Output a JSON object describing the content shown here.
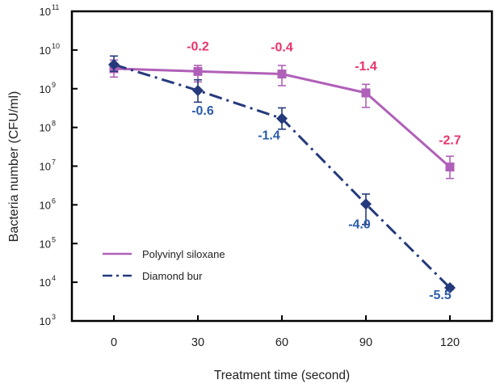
{
  "chart_data": {
    "type": "line",
    "xlabel": "Treatment time (second)",
    "ylabel": "Bacteria number (CFU/ml)",
    "x": [
      0,
      30,
      60,
      90,
      120
    ],
    "xlim": [
      -15,
      135
    ],
    "ylim": [
      1000,
      100000000000
    ],
    "yscale": "log",
    "y_tick_exponents": [
      3,
      4,
      5,
      6,
      7,
      8,
      9,
      10,
      11
    ],
    "y_tick_base": "10",
    "grid": false,
    "legend": {
      "position": "lower-left"
    },
    "series": [
      {
        "name": "Polyvinyl siloxane",
        "color": "#b060b8",
        "label_color": "#e8336a",
        "line_style": "solid",
        "marker": "square",
        "values": [
          3300000000,
          2800000000,
          2400000000,
          780000000,
          9500000
        ],
        "errors": [
          [
            2000000000,
            5500000000
          ],
          [
            1500000000,
            4000000000
          ],
          [
            1200000000,
            4000000000
          ],
          [
            330000000,
            1300000000
          ],
          [
            4800000,
            18000000
          ]
        ],
        "log_reduction_labels": [
          "",
          "-0.2",
          "-0.4",
          "-1.4",
          "-2.7"
        ]
      },
      {
        "name": "Diamond bur",
        "color": "#253a7c",
        "label_color": "#2a5caa",
        "line_style": "dashdot",
        "marker": "diamond",
        "values": [
          4200000000,
          900000000,
          170000000,
          1050000,
          7200
        ],
        "errors": [
          [
            2800000000,
            7000000000
          ],
          [
            450000000,
            1700000000
          ],
          [
            90000000,
            320000000
          ],
          [
            310000,
            1900000
          ],
          [
            6500,
            8000
          ]
        ],
        "log_reduction_labels": [
          "",
          "-0.6",
          "-1.4",
          "-4.0",
          "-5.5"
        ]
      }
    ]
  }
}
